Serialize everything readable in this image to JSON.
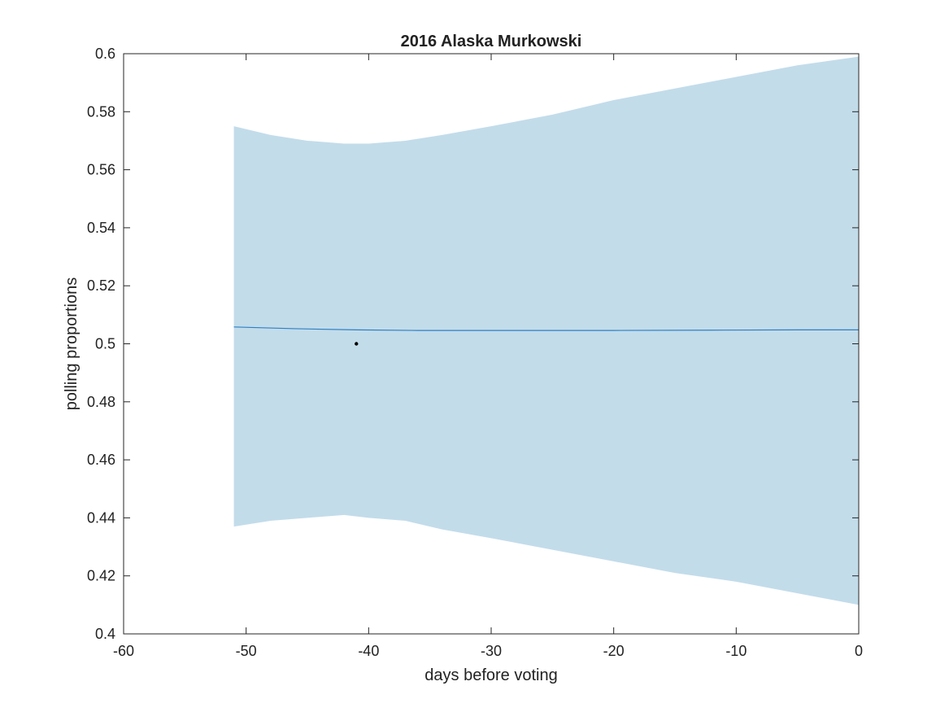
{
  "chart_data": {
    "type": "line",
    "title": "2016 Alaska Murkowski",
    "xlabel": "days before voting",
    "ylabel": "polling proportions",
    "xlim": [
      -60,
      0
    ],
    "ylim": [
      0.4,
      0.6
    ],
    "xticks": [
      -60,
      -50,
      -40,
      -30,
      -20,
      -10,
      0
    ],
    "xtick_labels": [
      "-60",
      "-50",
      "-40",
      "-30",
      "-20",
      "-10",
      "0"
    ],
    "yticks": [
      0.4,
      0.42,
      0.44,
      0.46,
      0.48,
      0.5,
      0.52,
      0.54,
      0.56,
      0.58,
      0.6
    ],
    "ytick_labels": [
      "0.4",
      "0.42",
      "0.44",
      "0.46",
      "0.48",
      "0.5",
      "0.52",
      "0.54",
      "0.56",
      "0.58",
      "0.6"
    ],
    "grid": false,
    "band": {
      "x": [
        -51,
        -48,
        -45,
        -42,
        -40,
        -37,
        -34,
        -30,
        -25,
        -20,
        -15,
        -10,
        -5,
        0
      ],
      "upper": [
        0.575,
        0.572,
        0.57,
        0.569,
        0.569,
        0.57,
        0.572,
        0.575,
        0.579,
        0.584,
        0.588,
        0.592,
        0.596,
        0.599
      ],
      "lower": [
        0.437,
        0.439,
        0.44,
        0.441,
        0.44,
        0.439,
        0.436,
        0.433,
        0.429,
        0.425,
        0.421,
        0.418,
        0.414,
        0.41
      ],
      "color": "#c2dcea"
    },
    "series": [
      {
        "x": [
          -51,
          -46,
          -41,
          -36,
          -30,
          -20,
          -12,
          -5,
          0
        ],
        "values": [
          0.5058,
          0.5052,
          0.5048,
          0.5046,
          0.5046,
          0.5046,
          0.5047,
          0.5048,
          0.5048
        ],
        "color": "#2f7fc3"
      }
    ],
    "points": [
      {
        "x": -41,
        "y": 0.5,
        "color": "#000000"
      }
    ]
  }
}
